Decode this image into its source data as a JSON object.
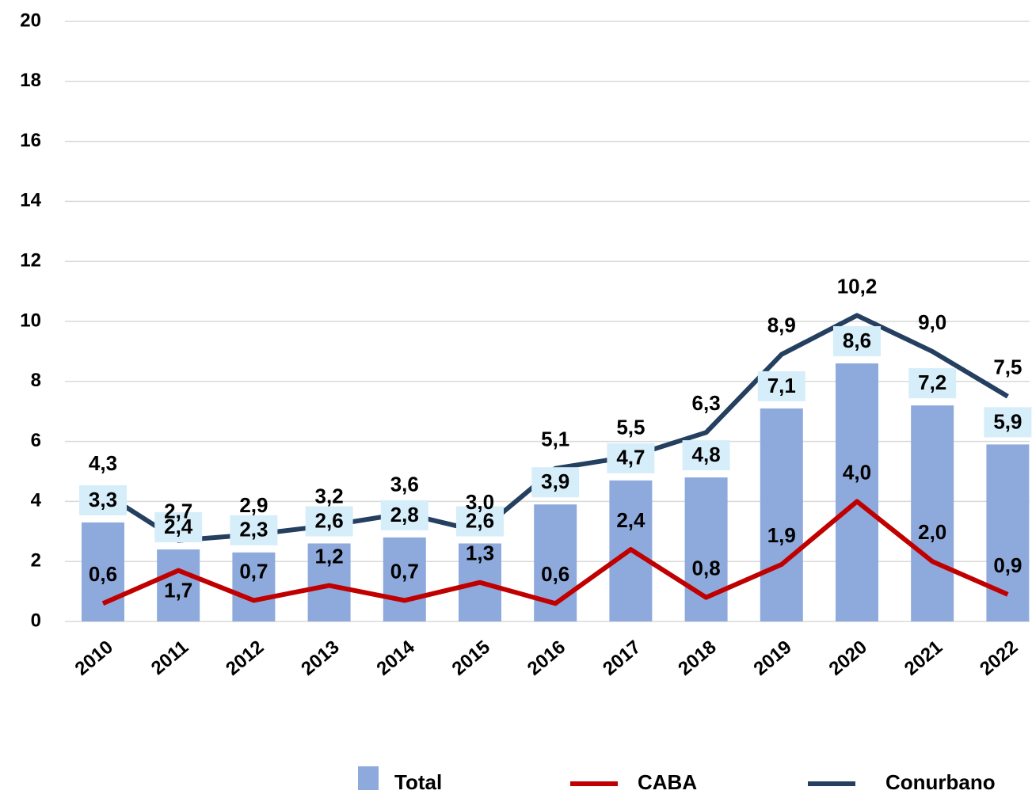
{
  "chart_data": {
    "type": "bar-line",
    "categories": [
      "2010",
      "2011",
      "2012",
      "2013",
      "2014",
      "2015",
      "2016",
      "2017",
      "2018",
      "2019",
      "2020",
      "2021",
      "2022"
    ],
    "series": [
      {
        "name": "Total",
        "type": "bar",
        "color": "#8eaadc",
        "values": [
          3.3,
          2.4,
          2.3,
          2.6,
          2.8,
          2.6,
          3.9,
          4.7,
          4.8,
          7.1,
          8.6,
          7.2,
          5.9
        ],
        "value_labels": [
          "3,3",
          "2,4",
          "2,3",
          "2,6",
          "2,8",
          "2,6",
          "3,9",
          "4,7",
          "4,8",
          "7,1",
          "8,6",
          "7,2",
          "5,9"
        ]
      },
      {
        "name": "CABA",
        "type": "line",
        "color": "#c00000",
        "values": [
          0.6,
          1.7,
          0.7,
          1.2,
          0.7,
          1.3,
          0.6,
          2.4,
          0.8,
          1.9,
          4.0,
          2.0,
          0.9
        ],
        "value_labels": [
          "0,6",
          "1,7",
          "0,7",
          "1,2",
          "0,7",
          "1,3",
          "0,6",
          "2,4",
          "0,8",
          "1,9",
          "4,0",
          "2,0",
          "0,9"
        ]
      },
      {
        "name": "Conurbano",
        "type": "line",
        "color": "#243f60",
        "values": [
          4.3,
          2.7,
          2.9,
          3.2,
          3.6,
          3.0,
          5.1,
          5.5,
          6.3,
          8.9,
          10.2,
          9.0,
          7.5
        ],
        "value_labels": [
          "4,3",
          "2,7",
          "2,9",
          "3,2",
          "3,6",
          "3,0",
          "5,1",
          "5,5",
          "6,3",
          "8,9",
          "10,2",
          "9,0",
          "7,5"
        ]
      }
    ],
    "ylim": [
      0,
      20
    ],
    "yticks": [
      0,
      2,
      4,
      6,
      8,
      10,
      12,
      14,
      16,
      18,
      20
    ],
    "grid": true,
    "legend": "bottom"
  }
}
